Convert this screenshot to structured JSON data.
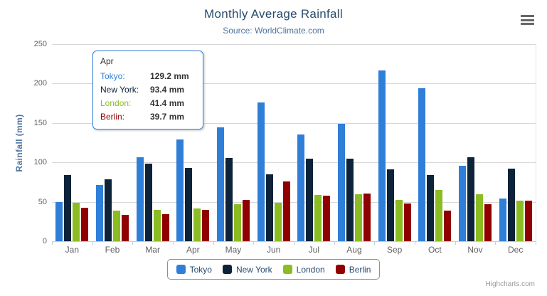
{
  "header": {
    "title": "Monthly Average Rainfall",
    "subtitle": "Source: WorldClimate.com"
  },
  "credits": "Highcharts.com",
  "chart_data": {
    "type": "bar",
    "title": "Monthly Average Rainfall",
    "subtitle": "Source: WorldClimate.com",
    "xlabel": "",
    "ylabel": "Rainfall (mm)",
    "categories": [
      "Jan",
      "Feb",
      "Mar",
      "Apr",
      "May",
      "Jun",
      "Jul",
      "Aug",
      "Sep",
      "Oct",
      "Nov",
      "Dec"
    ],
    "series": [
      {
        "name": "Tokyo",
        "color": "#2f7ed8",
        "values": [
          49.9,
          71.5,
          106.4,
          129.2,
          144.0,
          176.0,
          135.6,
          148.5,
          216.4,
          194.1,
          95.6,
          54.4
        ]
      },
      {
        "name": "New York",
        "color": "#0d233a",
        "values": [
          83.6,
          78.8,
          98.5,
          93.4,
          106.0,
          84.5,
          105.0,
          104.3,
          91.2,
          83.5,
          106.6,
          92.3
        ]
      },
      {
        "name": "London",
        "color": "#8bbc21",
        "values": [
          48.9,
          38.8,
          39.3,
          41.4,
          47.0,
          48.3,
          59.0,
          59.6,
          52.4,
          65.2,
          59.3,
          51.2
        ]
      },
      {
        "name": "Berlin",
        "color": "#910000",
        "values": [
          42.4,
          33.2,
          34.5,
          39.7,
          52.6,
          75.5,
          57.4,
          60.4,
          47.6,
          39.1,
          46.8,
          51.1
        ]
      }
    ],
    "ylim": [
      0,
      250
    ],
    "ytick_interval": 50,
    "grid": true,
    "legend_position": "bottom"
  },
  "tooltip": {
    "header": "Apr",
    "rows": [
      {
        "label": "Tokyo:",
        "value": "129.2 mm",
        "color": "#2f7ed8"
      },
      {
        "label": "New York:",
        "value": "93.4 mm",
        "color": "#0d233a"
      },
      {
        "label": "London:",
        "value": "41.4 mm",
        "color": "#8bbc21"
      },
      {
        "label": "Berlin:",
        "value": "39.7 mm",
        "color": "#910000"
      }
    ]
  },
  "colors": {
    "title": "#274b6d",
    "subtitle": "#4d759e",
    "axis_label": "#606060",
    "gridline": "#d8d8d8",
    "axis_line": "#c0d0e0",
    "legend_text": "#274b6d",
    "tooltip_border": "#2f7ed8"
  }
}
